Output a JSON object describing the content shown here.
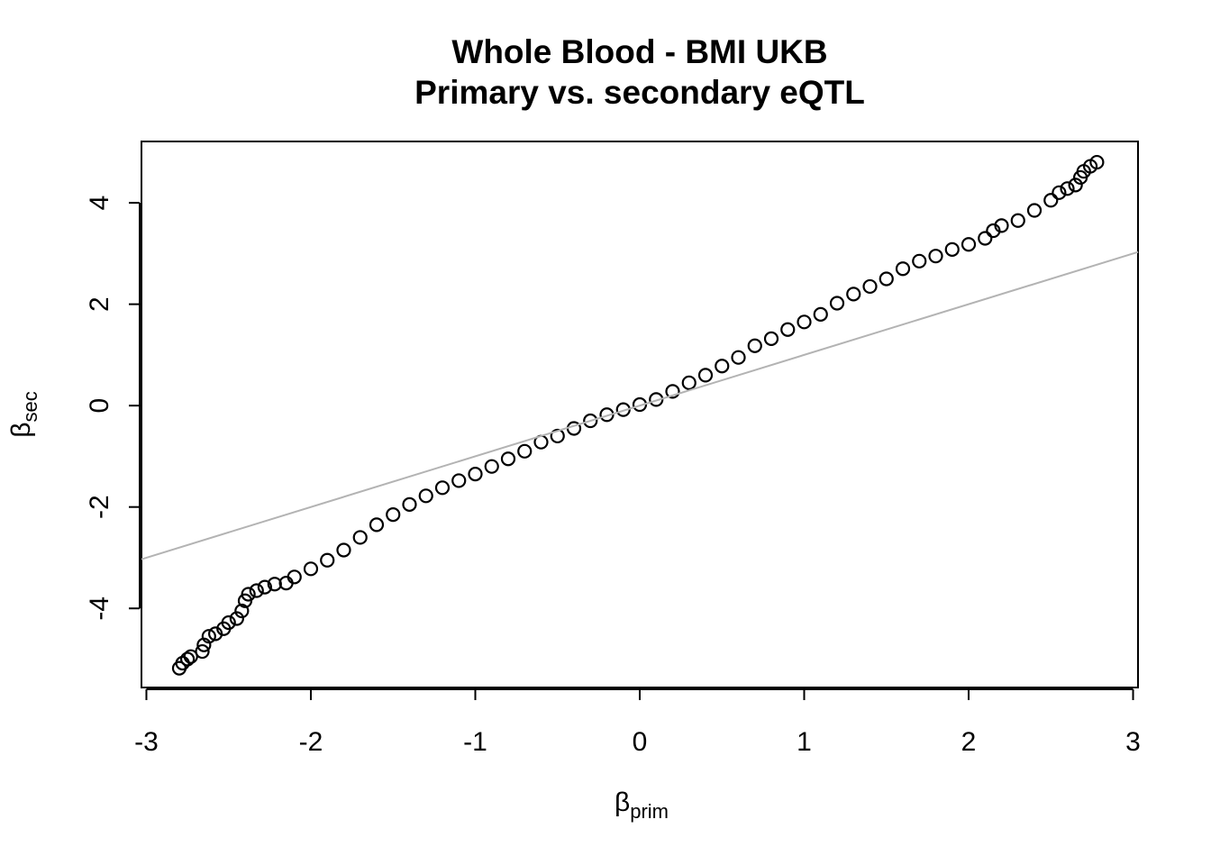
{
  "chart_data": {
    "type": "scatter",
    "title": "Whole Blood - BMI UKB",
    "subtitle": "Primary vs. secondary eQTL",
    "x_label": {
      "symbol": "β",
      "subscript": "prim"
    },
    "y_label": {
      "symbol": "β",
      "subscript": "sec"
    },
    "xlim": [
      -3.03,
      3.03
    ],
    "ylim": [
      -5.56,
      5.21
    ],
    "xticks": [
      -3,
      -2,
      -1,
      0,
      1,
      2,
      3
    ],
    "yticks": [
      -4,
      -2,
      0,
      2,
      4
    ],
    "color": "#000000",
    "abline": {
      "intercept": 0,
      "slope": 1,
      "color": "#b3b3b3"
    },
    "x": [
      -2.8,
      -2.78,
      -2.75,
      -2.73,
      -2.66,
      -2.65,
      -2.62,
      -2.58,
      -2.53,
      -2.5,
      -2.45,
      -2.42,
      -2.4,
      -2.38,
      -2.33,
      -2.28,
      -2.22,
      -2.15,
      -2.1,
      -2.0,
      -1.9,
      -1.8,
      -1.7,
      -1.6,
      -1.5,
      -1.4,
      -1.3,
      -1.2,
      -1.1,
      -1.0,
      -0.9,
      -0.8,
      -0.7,
      -0.6,
      -0.5,
      -0.4,
      -0.3,
      -0.2,
      -0.1,
      0,
      0.1,
      0.2,
      0.3,
      0.4,
      0.5,
      0.6,
      0.7,
      0.8,
      0.9,
      1.0,
      1.1,
      1.2,
      1.3,
      1.4,
      1.5,
      1.6,
      1.7,
      1.8,
      1.9,
      2.0,
      2.1,
      2.15,
      2.2,
      2.3,
      2.4,
      2.5,
      2.55,
      2.6,
      2.65,
      2.68,
      2.7,
      2.74,
      2.78
    ],
    "y": [
      -5.18,
      -5.08,
      -5.0,
      -4.95,
      -4.85,
      -4.72,
      -4.55,
      -4.5,
      -4.4,
      -4.28,
      -4.2,
      -4.05,
      -3.85,
      -3.72,
      -3.65,
      -3.58,
      -3.52,
      -3.5,
      -3.38,
      -3.22,
      -3.05,
      -2.85,
      -2.6,
      -2.35,
      -2.15,
      -1.95,
      -1.78,
      -1.62,
      -1.48,
      -1.35,
      -1.2,
      -1.05,
      -0.9,
      -0.72,
      -0.6,
      -0.45,
      -0.3,
      -0.18,
      -0.08,
      0.02,
      0.12,
      0.28,
      0.45,
      0.6,
      0.78,
      0.95,
      1.18,
      1.32,
      1.5,
      1.65,
      1.8,
      2.02,
      2.2,
      2.35,
      2.5,
      2.7,
      2.85,
      2.95,
      3.08,
      3.18,
      3.3,
      3.45,
      3.55,
      3.65,
      3.85,
      4.05,
      4.2,
      4.28,
      4.35,
      4.5,
      4.62,
      4.72,
      4.8
    ]
  }
}
